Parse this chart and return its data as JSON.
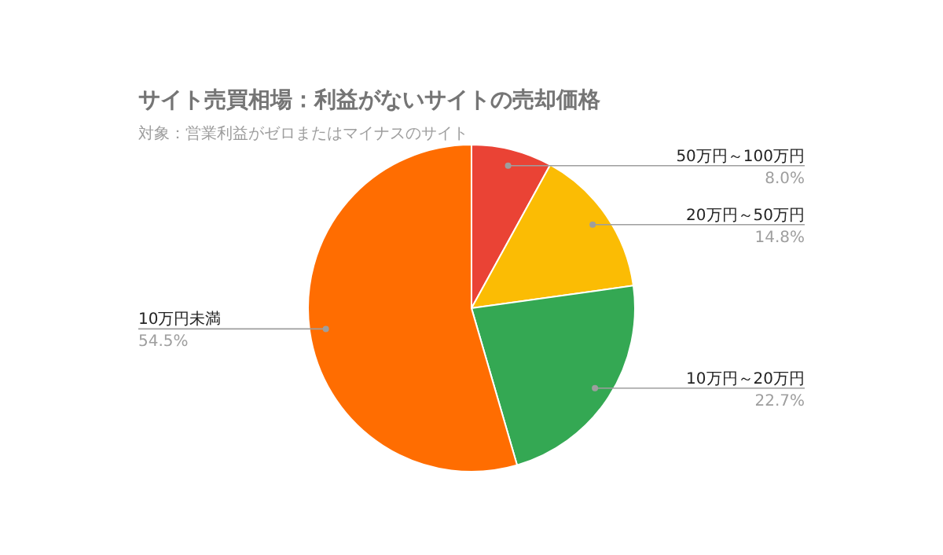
{
  "chart_data": {
    "type": "pie",
    "title": "サイト売買相場：利益がないサイトの売却価格",
    "subtitle": "対象：営業利益がゼロまたはマイナスのサイト",
    "categories": [
      "50万円～100万円",
      "20万円～50万円",
      "10万円～20万円",
      "10万円未満"
    ],
    "values": [
      8.0,
      14.8,
      22.7,
      54.5
    ],
    "colors": [
      "#ea4335",
      "#fbbc04",
      "#34a853",
      "#ff6d01"
    ],
    "value_labels": [
      "8.0%",
      "14.8%",
      "22.7%",
      "54.5%"
    ]
  }
}
